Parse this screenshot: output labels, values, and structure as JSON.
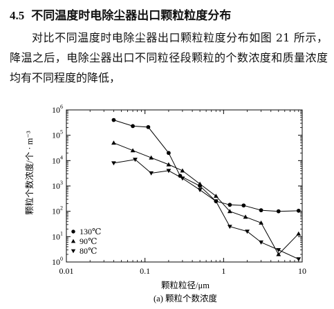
{
  "section": {
    "number": "4.5",
    "title": "不同温度时电除尘器出口颗粒粒度分布",
    "paragraph": "对比不同温度时电除尘器出口颗粒粒度分布如图 21 所示，降温之后，电除尘器出口不同粒径段颗粒的个数浓度和质量浓度均有不同程度的降低，"
  },
  "chart_data": {
    "type": "line",
    "title": "",
    "caption": "(a) 颗粒个数浓度",
    "xlabel": "颗粒粒径/μm",
    "ylabel": "颗粒个数浓度/个 · m⁻³",
    "xscale": "log",
    "yscale": "log",
    "xlim": [
      0.01,
      10
    ],
    "ylim": [
      1,
      1000000
    ],
    "x_ticks": [
      "0.01",
      "0.1",
      "1",
      "10"
    ],
    "y_ticks": [
      {
        "base": "10",
        "exp": "0"
      },
      {
        "base": "10",
        "exp": "1"
      },
      {
        "base": "10",
        "exp": "2"
      },
      {
        "base": "10",
        "exp": "3"
      },
      {
        "base": "10",
        "exp": "4"
      },
      {
        "base": "10",
        "exp": "5"
      },
      {
        "base": "10",
        "exp": "6"
      }
    ],
    "grid": false,
    "legend_position": "bottom-left",
    "series": [
      {
        "name": "130℃",
        "marker": "circle",
        "points": [
          [
            0.04,
            400000
          ],
          [
            0.07,
            230000
          ],
          [
            0.11,
            210000
          ],
          [
            0.2,
            20000
          ],
          [
            0.28,
            2500
          ],
          [
            0.5,
            1000
          ],
          [
            0.8,
            250
          ],
          [
            1.2,
            180
          ],
          [
            1.8,
            170
          ],
          [
            3.0,
            110
          ],
          [
            5.0,
            100
          ],
          [
            9.0,
            105
          ]
        ]
      },
      {
        "name": "90℃",
        "marker": "triangle-up",
        "points": [
          [
            0.04,
            50000
          ],
          [
            0.07,
            25000
          ],
          [
            0.12,
            13000
          ],
          [
            0.2,
            7000
          ],
          [
            0.3,
            4000
          ],
          [
            0.5,
            1200
          ],
          [
            0.8,
            400
          ],
          [
            1.2,
            100
          ],
          [
            1.9,
            60
          ],
          [
            3.0,
            35
          ],
          [
            5.0,
            2
          ],
          [
            9.0,
            13
          ]
        ]
      },
      {
        "name": "80℃",
        "marker": "triangle-down",
        "points": [
          [
            0.04,
            8000
          ],
          [
            0.075,
            11000
          ],
          [
            0.12,
            3200
          ],
          [
            0.2,
            4000
          ],
          [
            0.3,
            2000
          ],
          [
            0.5,
            700
          ],
          [
            0.8,
            250
          ],
          [
            1.2,
            25
          ],
          [
            2.0,
            16
          ],
          [
            3.0,
            6
          ],
          [
            5.0,
            3
          ],
          [
            9.0,
            1.3
          ]
        ]
      }
    ]
  }
}
